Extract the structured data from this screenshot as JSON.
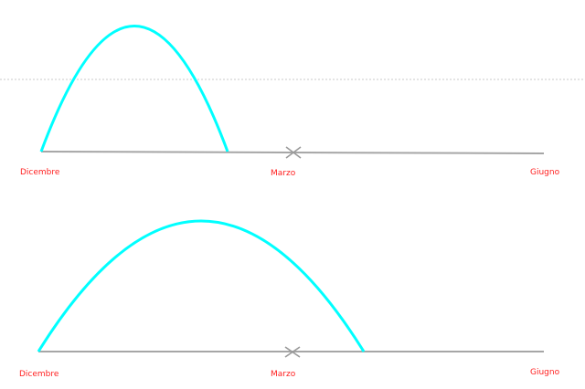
{
  "colors": {
    "background": "#ffffff",
    "arc": "#00ffff",
    "timeline": "#a6a6a6",
    "marker": "#9a9a9a",
    "labels": "#ff2020",
    "reference_line": "#c8c8c8"
  },
  "icons": {
    "marker": "x-marker-icon"
  },
  "reference_line": {
    "style": "dotted"
  },
  "panels": [
    {
      "name": "top",
      "labels": {
        "start": "Dicembre",
        "middle": "Marzo",
        "end": "Giugno"
      }
    },
    {
      "name": "bottom",
      "labels": {
        "start": "Dicembre",
        "middle": "Marzo",
        "end": "Giugno"
      }
    }
  ]
}
